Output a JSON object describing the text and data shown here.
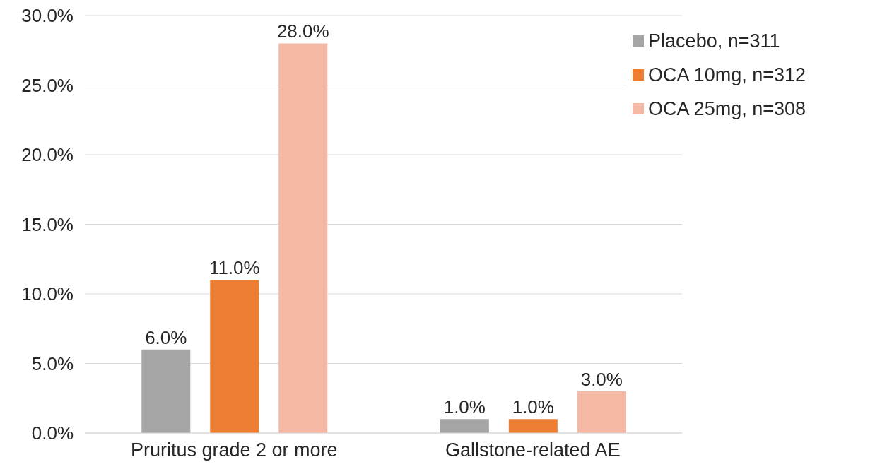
{
  "chart_data": {
    "type": "bar",
    "categories": [
      "Pruritus grade 2 or more",
      "Gallstone-related AE"
    ],
    "series": [
      {
        "name": "Placebo, n=311",
        "color": "#a5a5a5",
        "values": [
          6,
          1
        ],
        "value_labels": [
          "6.0%",
          "1.0%"
        ]
      },
      {
        "name": "OCA 10mg, n=312",
        "color": "#ed7d31",
        "values": [
          11,
          1
        ],
        "value_labels": [
          "11.0%",
          "1.0%"
        ]
      },
      {
        "name": "OCA 25mg, n=308",
        "color": "#f4b8a5",
        "values": [
          28,
          3
        ],
        "value_labels": [
          "28.0%",
          "3.0%"
        ]
      }
    ],
    "ylim": [
      0,
      30
    ],
    "yticks": [
      {
        "value": 0,
        "label": "0.0%"
      },
      {
        "value": 5,
        "label": "5.0%"
      },
      {
        "value": 10,
        "label": "10.0%"
      },
      {
        "value": 15,
        "label": "15.0%"
      },
      {
        "value": 20,
        "label": "20.0%"
      },
      {
        "value": 25,
        "label": "25.0%"
      },
      {
        "value": 30,
        "label": "30.0%"
      }
    ],
    "grid": "y",
    "legend": "top right"
  }
}
